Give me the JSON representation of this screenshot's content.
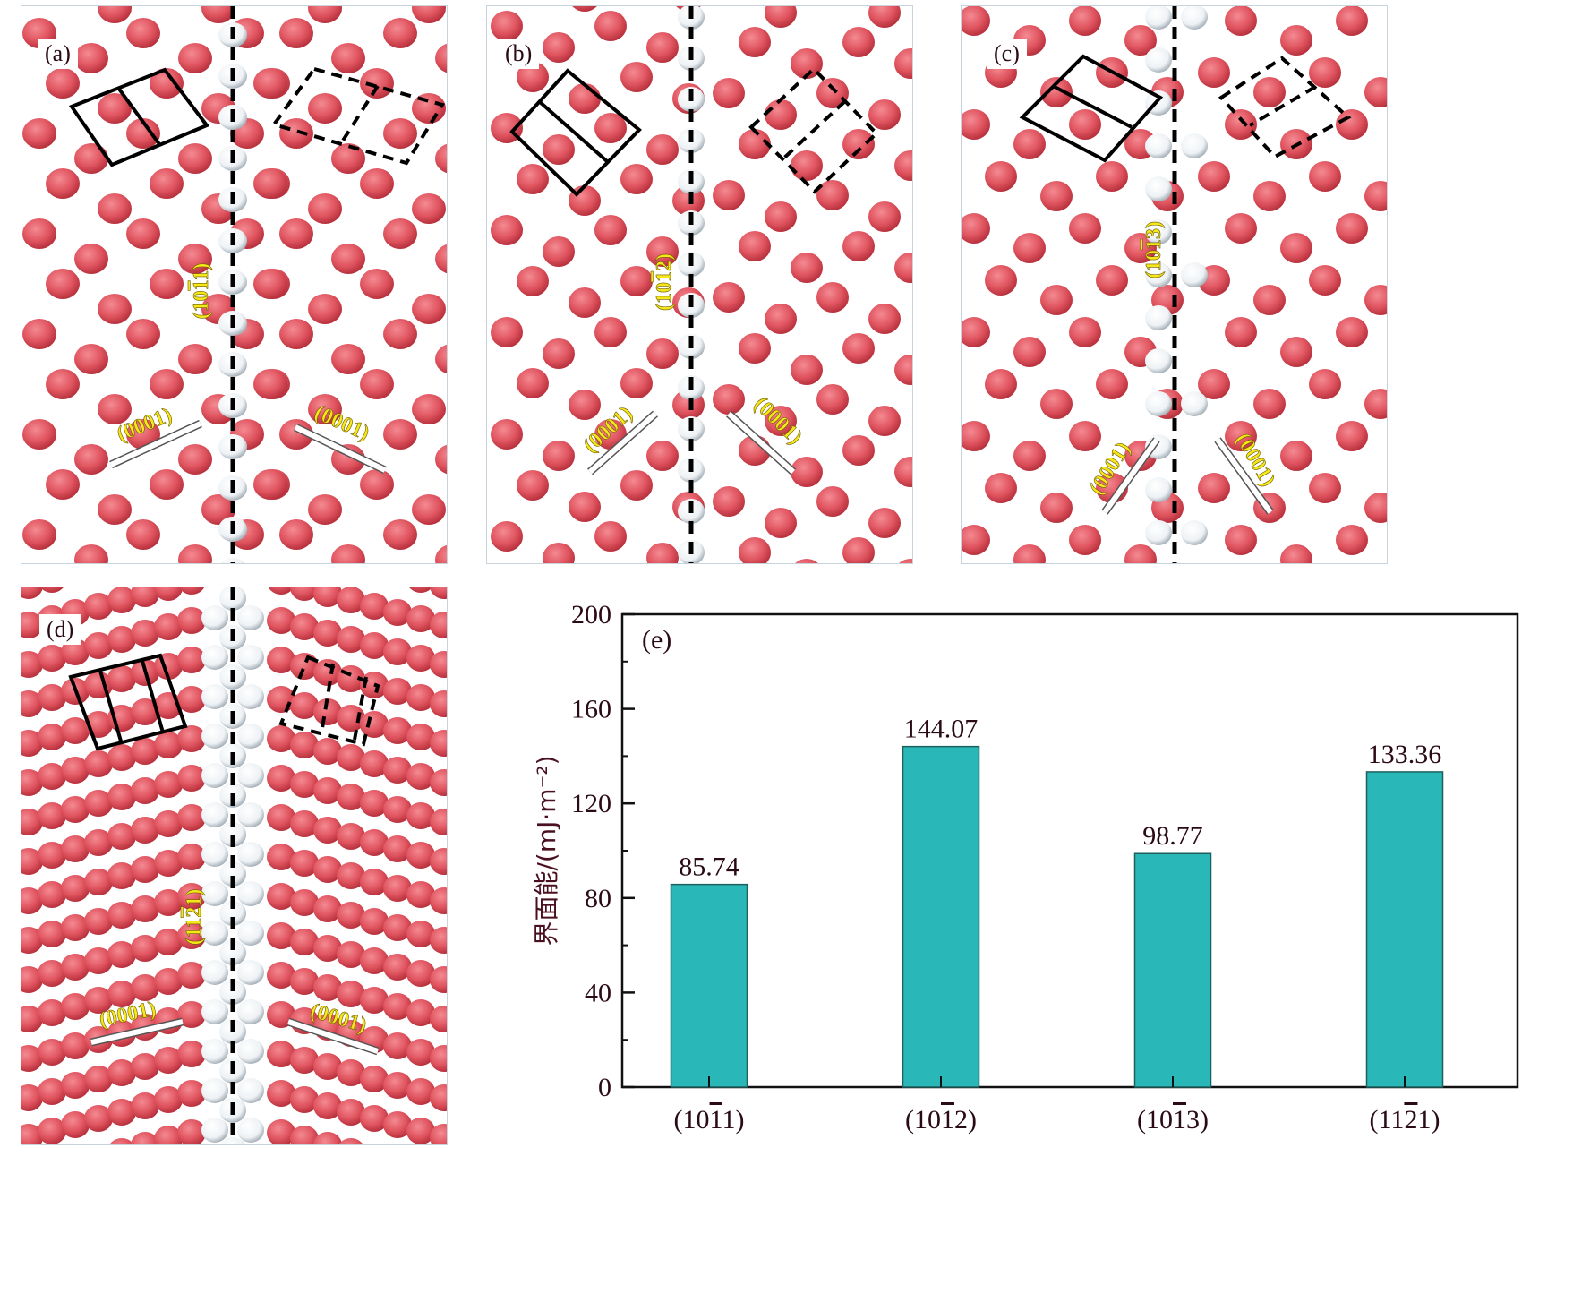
{
  "panels": [
    {
      "id": "a",
      "label": "(a)",
      "interface": "(1011̄)",
      "interface_main": "(10",
      "interface_bar": "1",
      "interface_tail": "1)",
      "basal_left": "(0001)",
      "basal_right": "(0001)"
    },
    {
      "id": "b",
      "label": "(b)",
      "interface_main": "(10",
      "interface_bar": "1",
      "interface_tail": "2)",
      "basal_left": "(0001)",
      "basal_right": "(0001)"
    },
    {
      "id": "c",
      "label": "(c)",
      "interface_main": "(10",
      "interface_bar": "1",
      "interface_tail": "3)",
      "basal_left": "(0001)",
      "basal_right": "(0001)"
    },
    {
      "id": "d",
      "label": "(d)",
      "interface_main": "(11",
      "interface_bar": "2",
      "interface_tail": "1)",
      "basal_left": "(0001)",
      "basal_right": "(0001)"
    }
  ],
  "colors": {
    "atom": "#e05560",
    "boundary_atom": "#eef2f5",
    "bar": "#29b8b7",
    "annotation": "#f5e71a",
    "text": "#2a0a14"
  },
  "chart_data": {
    "type": "bar",
    "panel_label": "(e)",
    "categories": [
      "(10‾11)",
      "(10‾12)",
      "(10‾13)",
      "(11‾21)"
    ],
    "category_parts": [
      {
        "pre": "(10",
        "bar": "1",
        "post": "1)"
      },
      {
        "pre": "(10",
        "bar": "1",
        "post": "2)"
      },
      {
        "pre": "(10",
        "bar": "1",
        "post": "3)"
      },
      {
        "pre": "(11",
        "bar": "2",
        "post": "1)"
      }
    ],
    "values": [
      85.74,
      144.07,
      98.77,
      133.36
    ],
    "value_labels": [
      "85.74",
      "144.07",
      "98.77",
      "133.36"
    ],
    "title": "",
    "xlabel": "",
    "ylabel": "界面能/(mJ·m⁻²)",
    "ylim": [
      0,
      200
    ],
    "yticks": [
      0,
      40,
      80,
      120,
      160,
      200
    ],
    "minor_yticks": [
      20,
      60,
      100,
      140,
      180
    ],
    "grid": false,
    "legend": "none"
  }
}
